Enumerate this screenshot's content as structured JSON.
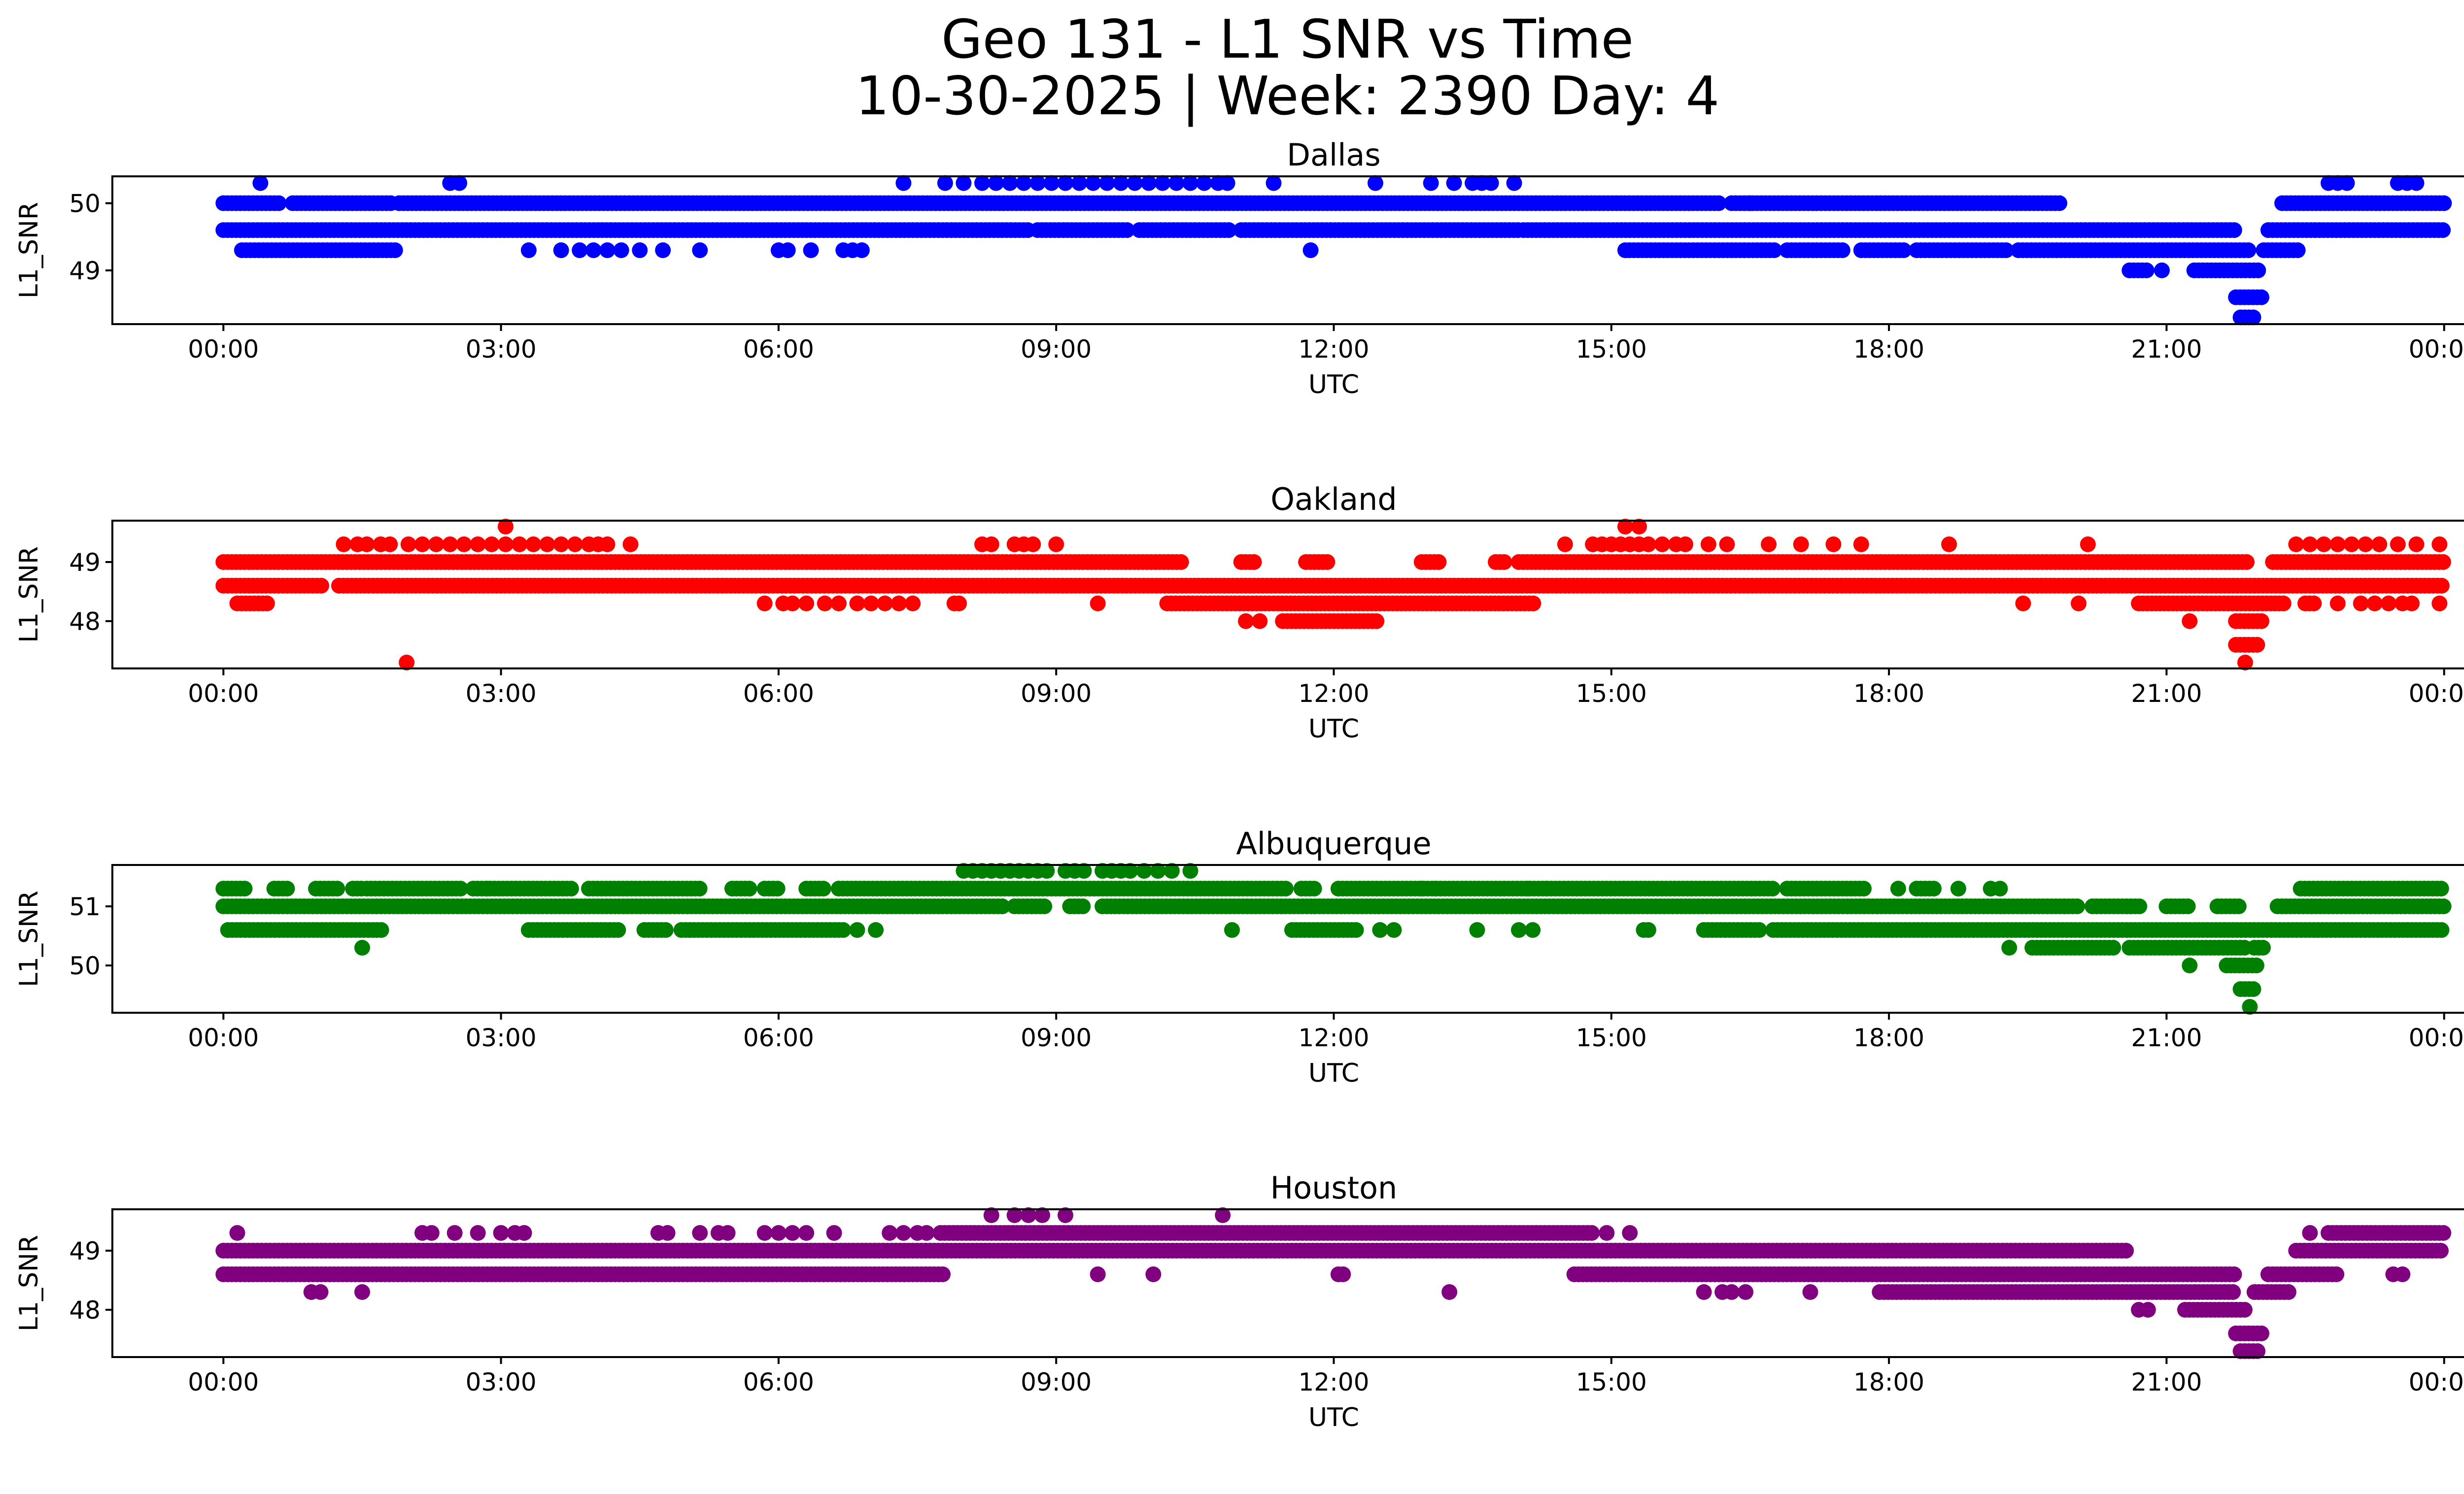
{
  "title_line1": "Geo 131 - L1 SNR vs Time",
  "title_line2": "10-30-2025 | Week: 2390 Day: 4",
  "chart_data": [
    {
      "type": "scatter",
      "title": "Dallas",
      "xlabel": "UTC",
      "ylabel": "L1_SNR",
      "color": "#0000ff",
      "xlim": [
        -1.2,
        25.2
      ],
      "ylim": [
        48.2,
        50.4
      ],
      "x_ticks": [
        "00:00",
        "03:00",
        "06:00",
        "09:00",
        "12:00",
        "15:00",
        "18:00",
        "21:00",
        "00:00"
      ],
      "y_ticks": [
        49,
        50
      ],
      "bands": [
        {
          "y": 50.0,
          "segments": [
            [
              0.0,
              0.6
            ],
            [
              0.75,
              1.85
            ],
            [
              1.9,
              16.2
            ],
            [
              16.3,
              19.85
            ],
            [
              22.25,
              24.0
            ]
          ]
        },
        {
          "y": 49.6,
          "segments": [
            [
              0.0,
              8.7
            ],
            [
              8.8,
              9.8
            ],
            [
              9.9,
              10.9
            ],
            [
              11.0,
              14.0
            ],
            [
              14.05,
              21.75
            ],
            [
              22.1,
              24.0
            ]
          ]
        },
        {
          "y": 49.3,
          "segments": [
            [
              0.2,
              1.9
            ],
            [
              15.15,
              16.8
            ],
            [
              16.9,
              17.5
            ],
            [
              17.7,
              18.2
            ],
            [
              18.3,
              19.3
            ],
            [
              19.4,
              21.9
            ],
            [
              22.05,
              22.45
            ]
          ]
        },
        {
          "y": 49.0,
          "segments": [
            [
              20.6,
              20.8
            ],
            [
              21.3,
              22.0
            ]
          ]
        },
        {
          "y": 48.6,
          "segments": [
            [
              21.75,
              22.05
            ]
          ]
        },
        {
          "y": 48.3,
          "segments": [
            [
              21.8,
              21.98
            ]
          ]
        }
      ],
      "points": [
        {
          "y": 50.3,
          "x": [
            0.4,
            2.45,
            2.55,
            7.35,
            7.8,
            8.0,
            8.2,
            8.35,
            8.5,
            8.65,
            8.8,
            8.95,
            9.1,
            9.25,
            9.4,
            9.55,
            9.7,
            9.85,
            10.0,
            10.15,
            10.3,
            10.45,
            10.6,
            10.75,
            10.85,
            11.35,
            12.45,
            13.05,
            13.3,
            13.5,
            13.6,
            13.7,
            13.95,
            22.75,
            22.85,
            22.95,
            23.5,
            23.6,
            23.7
          ]
        },
        {
          "y": 49.3,
          "x": [
            3.3,
            3.65,
            3.85,
            4.0,
            4.15,
            4.3,
            4.5,
            4.75,
            5.15,
            6.0,
            6.1,
            6.35,
            6.7,
            6.8,
            6.9,
            11.75
          ]
        },
        {
          "y": 49.0,
          "x": [
            20.95
          ]
        },
        {
          "y": 50.0,
          "x": [
            16.5
          ]
        }
      ]
    },
    {
      "type": "scatter",
      "title": "Oakland",
      "xlabel": "UTC",
      "ylabel": "L1_SNR",
      "color": "#ff0000",
      "xlim": [
        -1.2,
        25.2
      ],
      "ylim": [
        47.2,
        49.7
      ],
      "x_ticks": [
        "00:00",
        "03:00",
        "06:00",
        "09:00",
        "12:00",
        "15:00",
        "18:00",
        "21:00",
        "00:00"
      ],
      "y_ticks": [
        48,
        49
      ],
      "bands": [
        {
          "y": 49.0,
          "segments": [
            [
              0.0,
              10.35
            ],
            [
              11.0,
              11.15
            ],
            [
              11.7,
              11.95
            ],
            [
              12.95,
              13.15
            ],
            [
              13.75,
              13.85
            ],
            [
              14.0,
              21.9
            ],
            [
              22.15,
              24.0
            ]
          ]
        },
        {
          "y": 48.6,
          "segments": [
            [
              0.0,
              1.1
            ],
            [
              1.25,
              24.0
            ]
          ]
        },
        {
          "y": 48.3,
          "segments": [
            [
              0.15,
              0.5
            ],
            [
              10.2,
              14.2
            ],
            [
              20.7,
              22.3
            ],
            [
              22.5,
              22.6
            ]
          ]
        },
        {
          "y": 48.0,
          "segments": [
            [
              11.45,
              12.5
            ],
            [
              21.75,
              22.05
            ]
          ]
        },
        {
          "y": 47.6,
          "segments": [
            [
              21.75,
              22.0
            ]
          ]
        }
      ],
      "points": [
        {
          "y": 49.3,
          "x": [
            1.3,
            1.45,
            1.55,
            1.7,
            1.8,
            2.0,
            2.15,
            2.3,
            2.45,
            2.6,
            2.75,
            2.9,
            3.05,
            3.2,
            3.35,
            3.5,
            3.65,
            3.8,
            3.95,
            4.05,
            4.15,
            4.4,
            8.2,
            8.3,
            8.55,
            8.65,
            8.75,
            9.0,
            14.5,
            14.8,
            14.9,
            15.0,
            15.1,
            15.2,
            15.3,
            15.4,
            15.55,
            15.7,
            15.8,
            16.05,
            16.25,
            16.7,
            17.05,
            17.4,
            17.7,
            18.65,
            20.15,
            22.4,
            22.55,
            22.7,
            22.85,
            23.0,
            23.15,
            23.3,
            23.5,
            23.7,
            23.95
          ]
        },
        {
          "y": 49.6,
          "x": [
            3.05,
            15.15,
            15.3
          ]
        },
        {
          "y": 48.3,
          "x": [
            5.85,
            6.05,
            6.15,
            6.3,
            6.5,
            6.65,
            6.85,
            7.0,
            7.15,
            7.3,
            7.45,
            7.9,
            7.95,
            9.45,
            19.45,
            20.05,
            22.85,
            23.1,
            23.25,
            23.4,
            23.55,
            23.65,
            23.95
          ]
        },
        {
          "y": 48.0,
          "x": [
            11.05,
            11.2,
            21.25
          ]
        },
        {
          "y": 47.3,
          "x": [
            1.98,
            21.85
          ]
        }
      ]
    },
    {
      "type": "scatter",
      "title": "Albuquerque",
      "xlabel": "UTC",
      "ylabel": "L1_SNR",
      "color": "#008000",
      "xlim": [
        -1.2,
        25.2
      ],
      "ylim": [
        49.2,
        51.7
      ],
      "x_ticks": [
        "00:00",
        "03:00",
        "06:00",
        "09:00",
        "12:00",
        "15:00",
        "18:00",
        "21:00",
        "00:00"
      ],
      "y_ticks": [
        50,
        51
      ],
      "bands": [
        {
          "y": 51.3,
          "segments": [
            [
              0.0,
              0.25
            ],
            [
              0.55,
              0.7
            ],
            [
              1.0,
              1.25
            ],
            [
              1.4,
              1.5
            ],
            [
              1.55,
              2.6
            ],
            [
              2.7,
              3.8
            ],
            [
              3.95,
              5.15
            ],
            [
              5.5,
              5.7
            ],
            [
              5.85,
              6.0
            ],
            [
              6.3,
              6.5
            ],
            [
              6.65,
              11.5
            ],
            [
              11.65,
              11.8
            ],
            [
              12.05,
              16.75
            ],
            [
              16.9,
              17.75
            ],
            [
              18.3,
              18.5
            ],
            [
              22.45,
              24.0
            ]
          ]
        },
        {
          "y": 51.0,
          "segments": [
            [
              0.0,
              8.45
            ],
            [
              8.55,
              8.9
            ],
            [
              9.15,
              9.3
            ],
            [
              9.5,
              20.05
            ],
            [
              20.2,
              20.75
            ],
            [
              21.0,
              21.25
            ],
            [
              21.55,
              21.8
            ],
            [
              22.2,
              24.0
            ]
          ]
        },
        {
          "y": 50.6,
          "segments": [
            [
              0.05,
              1.75
            ],
            [
              3.3,
              4.3
            ],
            [
              4.55,
              4.8
            ],
            [
              4.95,
              6.7
            ],
            [
              11.55,
              12.25
            ],
            [
              16.0,
              16.6
            ],
            [
              16.75,
              24.0
            ]
          ]
        },
        {
          "y": 50.3,
          "segments": [
            [
              19.55,
              20.45
            ],
            [
              20.6,
              21.85
            ],
            [
              21.95,
              22.05
            ]
          ]
        },
        {
          "y": 50.0,
          "segments": [
            [
              21.65,
              22.0
            ]
          ]
        },
        {
          "y": 49.6,
          "segments": [
            [
              21.8,
              21.95
            ]
          ]
        }
      ],
      "points": [
        {
          "y": 51.6,
          "x": [
            8.0,
            8.1,
            8.2,
            8.3,
            8.4,
            8.5,
            8.6,
            8.7,
            8.8,
            8.9,
            9.1,
            9.2,
            9.3,
            9.5,
            9.6,
            9.7,
            9.8,
            9.95,
            10.1,
            10.25,
            10.45
          ]
        },
        {
          "y": 51.3,
          "x": [
            2.85,
            12.95,
            13.1,
            14.1,
            14.3,
            18.1,
            18.75,
            19.1,
            19.2
          ]
        },
        {
          "y": 50.6,
          "x": [
            6.85,
            7.05,
            10.9,
            12.5,
            12.65,
            13.55,
            14.0,
            14.15,
            15.35,
            15.4
          ]
        },
        {
          "y": 50.3,
          "x": [
            1.5,
            19.3
          ]
        },
        {
          "y": 50.0,
          "x": [
            21.25
          ]
        },
        {
          "y": 49.3,
          "x": [
            21.9
          ]
        }
      ]
    },
    {
      "type": "scatter",
      "title": "Houston",
      "xlabel": "UTC",
      "ylabel": "L1_SNR",
      "color": "#800080",
      "xlim": [
        -1.2,
        25.2
      ],
      "ylim": [
        47.2,
        49.7
      ],
      "x_ticks": [
        "00:00",
        "03:00",
        "06:00",
        "09:00",
        "12:00",
        "15:00",
        "18:00",
        "21:00",
        "00:00"
      ],
      "y_ticks": [
        48,
        49
      ],
      "bands": [
        {
          "y": 49.3,
          "segments": [
            [
              7.75,
              14.8
            ],
            [
              22.75,
              24.0
            ]
          ]
        },
        {
          "y": 49.0,
          "segments": [
            [
              0.0,
              20.6
            ],
            [
              22.4,
              24.0
            ]
          ]
        },
        {
          "y": 48.6,
          "segments": [
            [
              0.0,
              7.8
            ],
            [
              14.6,
              21.75
            ],
            [
              22.1,
              22.85
            ]
          ]
        },
        {
          "y": 48.3,
          "segments": [
            [
              17.9,
              21.75
            ],
            [
              21.95,
              22.35
            ]
          ]
        },
        {
          "y": 48.0,
          "segments": [
            [
              21.2,
              21.85
            ]
          ]
        },
        {
          "y": 47.6,
          "segments": [
            [
              21.75,
              22.05
            ]
          ]
        },
        {
          "y": 47.3,
          "segments": [
            [
              21.8,
              22.0
            ]
          ]
        }
      ],
      "points": [
        {
          "y": 49.3,
          "x": [
            0.15,
            2.15,
            2.25,
            2.5,
            2.75,
            3.0,
            3.15,
            3.25,
            4.7,
            4.8,
            5.15,
            5.35,
            5.45,
            5.85,
            6.0,
            6.15,
            6.3,
            6.6,
            7.2,
            7.35,
            7.5,
            7.6,
            14.95,
            15.2,
            22.55
          ]
        },
        {
          "y": 49.6,
          "x": [
            8.3,
            8.55,
            8.7,
            8.85,
            9.1,
            10.8
          ]
        },
        {
          "y": 48.6,
          "x": [
            9.45,
            10.05,
            12.05,
            12.1,
            23.45,
            23.55
          ]
        },
        {
          "y": 48.3,
          "x": [
            0.95,
            1.05,
            1.5,
            13.25,
            16.0,
            16.2,
            16.3,
            16.45,
            17.15
          ]
        },
        {
          "y": 48.0,
          "x": [
            20.7,
            20.8
          ]
        }
      ]
    }
  ]
}
